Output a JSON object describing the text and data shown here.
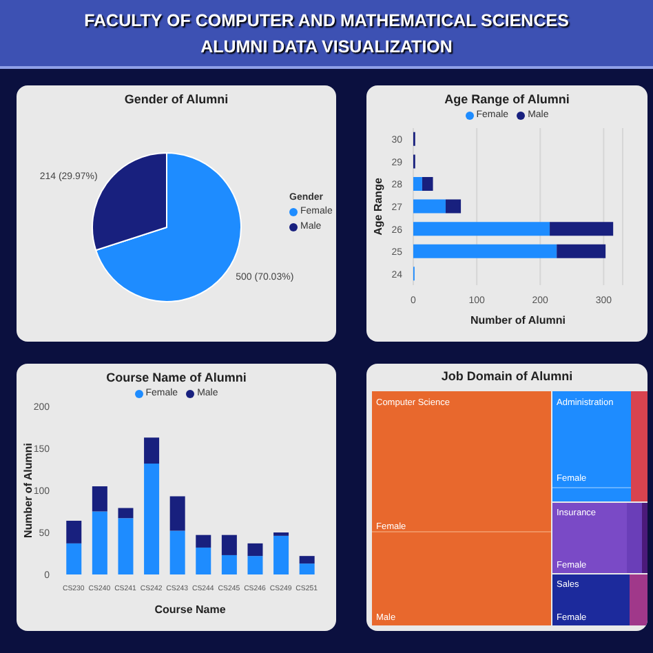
{
  "chart_data": [
    {
      "type": "other",
      "title": "FACULTY OF COMPUTER AND MATHEMATICAL SCIENCES",
      "subtitle": "ALUMNI DATA VISUALIZATION"
    },
    {
      "type": "pie",
      "title": "Gender of Alumni",
      "categories": [
        "Female",
        "Male"
      ],
      "values": [
        500,
        214
      ],
      "colors": [
        "#1e8cff",
        "#18207e"
      ],
      "value_labels": [
        "500 (70.03%)",
        "214 (29.97%)"
      ],
      "legend": "right",
      "legend_title": "Gender"
    },
    {
      "type": "bar",
      "orientation": "horizontal",
      "stacked": true,
      "title": "Age Range of Alumni",
      "categories": [
        "30",
        "29",
        "28",
        "27",
        "26",
        "25",
        "24"
      ],
      "xlabel": "Number of Alumni",
      "ylabel": "Age Range",
      "xlim": [
        0,
        330
      ],
      "xticks": [
        0,
        100,
        200,
        300
      ],
      "grid": "x",
      "legend": "top",
      "series": [
        {
          "name": "Female",
          "color": "#1e8cff",
          "values": [
            null,
            null,
            14,
            51,
            215,
            226,
            2
          ]
        },
        {
          "name": "Male",
          "color": "#18207e",
          "values": [
            3,
            3,
            17,
            24,
            100,
            77,
            null
          ]
        }
      ]
    },
    {
      "type": "bar",
      "stacked": true,
      "title": "Course Name of Alumni",
      "categories": [
        "CS230",
        "CS240",
        "CS241",
        "CS242",
        "CS243",
        "CS244",
        "CS245",
        "CS246",
        "CS249",
        "CS251"
      ],
      "xlabel": "Course Name",
      "ylabel": "Number of Alumni",
      "ylim": [
        0,
        200
      ],
      "yticks": [
        0,
        50,
        100,
        150,
        200
      ],
      "legend": "top",
      "series": [
        {
          "name": "Female",
          "color": "#1e8cff",
          "values": [
            37,
            75,
            67,
            132,
            52,
            32,
            23,
            22,
            46,
            13
          ]
        },
        {
          "name": "Male",
          "color": "#18207e",
          "values": [
            27,
            30,
            12,
            31,
            41,
            15,
            24,
            15,
            4,
            9
          ]
        }
      ]
    },
    {
      "type": "other",
      "title": "Job Domain of Alumni",
      "annotations": [
        "Computer Science",
        "Female",
        "Male",
        "Administration",
        "Female",
        "Insurance",
        "Female",
        "Sales",
        "Female"
      ]
    }
  ]
}
